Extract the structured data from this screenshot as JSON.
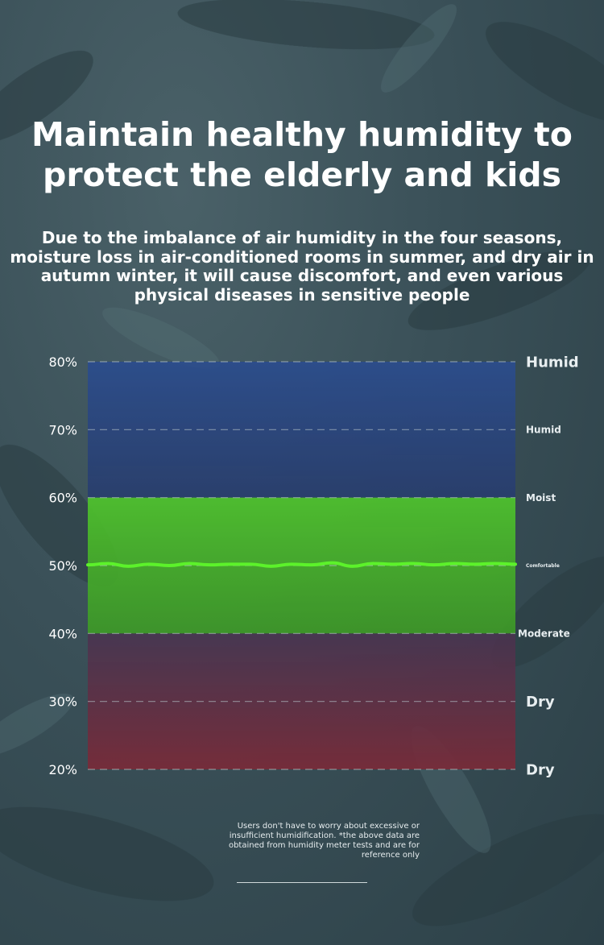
{
  "headline": "Maintain healthy humidity to protect the elderly and kids",
  "subtext": "Due to the imbalance of air humidity in the four seasons, moisture loss in air-conditioned rooms in summer, and dry air in autumn winter, it will cause discomfort, and even various physical diseases in sensitive people",
  "footnote": "Users don't have to worry about excessive or insufficient humidification. *the above data are obtained from humidity meter tests and are for reference only",
  "chart_data": {
    "type": "area",
    "ylim": [
      20,
      80
    ],
    "y_ticks": [
      "20%",
      "30%",
      "40%",
      "50%",
      "60%",
      "70%",
      "80%"
    ],
    "y_tick_values": [
      20,
      30,
      40,
      50,
      60,
      70,
      80
    ],
    "zones": [
      {
        "from": 60,
        "to": 80,
        "color": "#2b4a86"
      },
      {
        "from": 40,
        "to": 60,
        "color": "#4bb52a"
      },
      {
        "from": 20,
        "to": 40,
        "color": "#6a2b3c"
      }
    ],
    "right_labels": [
      {
        "value": 80,
        "text": "Humid",
        "size": "large"
      },
      {
        "value": 70,
        "text": "Humid",
        "size": "small"
      },
      {
        "value": 60,
        "text": "Moist",
        "size": "small"
      },
      {
        "value": 50,
        "text": "Comfortable",
        "size": "tiny"
      },
      {
        "value": 40,
        "text": "Moderate",
        "size": "small"
      },
      {
        "value": 30,
        "text": "Dry",
        "size": "large"
      },
      {
        "value": 20,
        "text": "Dry",
        "size": "large"
      }
    ],
    "series": [
      {
        "line_color": "#5cf22a",
        "values": [
          50.1,
          50.3,
          49.9,
          50.2,
          50.0,
          50.3,
          50.1,
          50.2,
          50.2,
          49.9,
          50.2,
          50.1,
          50.4,
          49.9,
          50.3,
          50.2,
          50.3,
          50.1,
          50.3,
          50.2,
          50.3,
          50.2
        ]
      }
    ],
    "grid": true
  }
}
